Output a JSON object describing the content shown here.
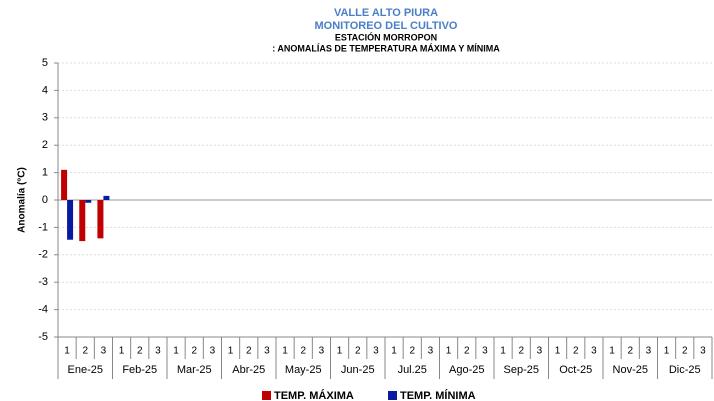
{
  "chart_data": {
    "type": "bar",
    "title": [
      "VALLE ALTO PIURA",
      "MONITOREO DEL CULTIVO"
    ],
    "subtitle": [
      "ESTACIÓN MORROPON",
      ": ANOMALÍAS DE TEMPERATURA MÁXIMA Y MÍNIMA"
    ],
    "y_label": "Anomalía (°C)",
    "categories": [
      "1",
      "2",
      "3",
      "1",
      "2",
      "3",
      "1",
      "2",
      "3",
      "1",
      "2",
      "3",
      "1",
      "2",
      "3",
      "1",
      "2",
      "3",
      "1",
      "2",
      "3",
      "1",
      "2",
      "3",
      "1",
      "2",
      "3",
      "1",
      "2",
      "3",
      "1",
      "2",
      "3",
      "1",
      "2",
      "3"
    ],
    "groups": [
      "Ene-25",
      "Feb-25",
      "Mar-25",
      "Abr-25",
      "May-25",
      "Jun-25",
      "Jul.25",
      "Ago-25",
      "Sep-25",
      "Oct-25",
      "Nov-25",
      "Dic-25"
    ],
    "series": [
      {
        "name": "TEMP. MÁXIMA",
        "color": "#c00000",
        "values": [
          1.1,
          -1.5,
          -1.4,
          null,
          null,
          null,
          null,
          null,
          null,
          null,
          null,
          null,
          null,
          null,
          null,
          null,
          null,
          null,
          null,
          null,
          null,
          null,
          null,
          null,
          null,
          null,
          null,
          null,
          null,
          null,
          null,
          null,
          null,
          null,
          null,
          null
        ]
      },
      {
        "name": "TEMP. MÍNIMA",
        "color": "#0a1aa0",
        "values": [
          -1.45,
          -0.1,
          0.15,
          null,
          null,
          null,
          null,
          null,
          null,
          null,
          null,
          null,
          null,
          null,
          null,
          null,
          null,
          null,
          null,
          null,
          null,
          null,
          null,
          null,
          null,
          null,
          null,
          null,
          null,
          null,
          null,
          null,
          null,
          null,
          null,
          null
        ]
      }
    ],
    "ylim": [
      -5,
      5
    ],
    "yticks": [
      -5,
      -4,
      -3,
      -2,
      -1,
      0,
      1,
      2,
      3,
      4,
      5
    ],
    "grid": true
  }
}
